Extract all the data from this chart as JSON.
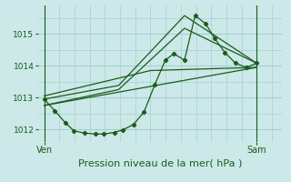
{
  "background_color": "#cce8e8",
  "grid_color": "#99cccc",
  "line_color": "#1a5c1a",
  "ylim": [
    1011.6,
    1015.9
  ],
  "yticks": [
    1012,
    1013,
    1014,
    1015
  ],
  "ytick_labels": [
    "1012",
    "1013",
    "1014",
    "1015"
  ],
  "xlabel": "Pression niveau de la mer( hPa )",
  "xlabel_fontsize": 8,
  "xtick_labels": [
    "Ven",
    "Sam"
  ],
  "xtick_pos": [
    0.0,
    1.0
  ],
  "xlim": [
    -0.03,
    1.12
  ],
  "line0_x": [
    0.0,
    0.05,
    0.1,
    0.14,
    0.19,
    0.24,
    0.28,
    0.33,
    0.37,
    0.42,
    0.47,
    0.52,
    0.57,
    0.61,
    0.66,
    0.71,
    0.76,
    0.8,
    0.85,
    0.9,
    0.95,
    1.0
  ],
  "line0_y": [
    1012.95,
    1012.58,
    1012.2,
    1011.95,
    1011.88,
    1011.85,
    1011.85,
    1011.9,
    1011.98,
    1012.15,
    1012.55,
    1013.4,
    1014.18,
    1014.38,
    1014.18,
    1015.58,
    1015.32,
    1014.88,
    1014.42,
    1014.08,
    1013.95,
    1014.08
  ],
  "line1_x": [
    0.0,
    0.35,
    0.66,
    1.0
  ],
  "line1_y": [
    1012.95,
    1013.38,
    1015.58,
    1014.08
  ],
  "line2_x": [
    0.0,
    0.35,
    0.66,
    1.0
  ],
  "line2_y": [
    1012.75,
    1013.25,
    1015.18,
    1014.08
  ],
  "line3_x": [
    0.0,
    1.0
  ],
  "line3_y": [
    1012.75,
    1013.95
  ],
  "line4_x": [
    0.0,
    0.5,
    1.0
  ],
  "line4_y": [
    1013.05,
    1013.85,
    1013.95
  ]
}
